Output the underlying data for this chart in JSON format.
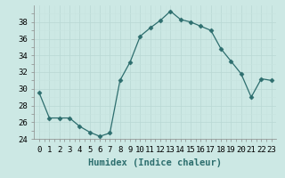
{
  "x": [
    0,
    1,
    2,
    3,
    4,
    5,
    6,
    7,
    8,
    9,
    10,
    11,
    12,
    13,
    14,
    15,
    16,
    17,
    18,
    19,
    20,
    21,
    22,
    23
  ],
  "y": [
    29.5,
    26.5,
    26.5,
    26.5,
    25.5,
    24.8,
    24.3,
    24.7,
    31.0,
    33.2,
    36.3,
    37.3,
    38.2,
    39.3,
    38.3,
    38.0,
    37.5,
    37.0,
    34.8,
    33.3,
    31.8,
    29.0,
    31.2,
    31.0
  ],
  "line_color": "#2d6e6e",
  "marker": "D",
  "marker_size": 2.5,
  "bg_color": "#cce8e4",
  "grid_major_color": "#b8d8d4",
  "grid_minor_color": "#c8e4e0",
  "xlabel": "Humidex (Indice chaleur)",
  "xlim": [
    -0.5,
    23.5
  ],
  "ylim": [
    24,
    40
  ],
  "yticks": [
    24,
    26,
    28,
    30,
    32,
    34,
    36,
    38
  ],
  "xtick_labels": [
    "0",
    "1",
    "2",
    "3",
    "4",
    "5",
    "6",
    "7",
    "8",
    "9",
    "10",
    "11",
    "12",
    "13",
    "14",
    "15",
    "16",
    "17",
    "18",
    "19",
    "20",
    "21",
    "22",
    "23"
  ],
  "xlabel_fontsize": 7.5,
  "tick_fontsize": 6.5
}
